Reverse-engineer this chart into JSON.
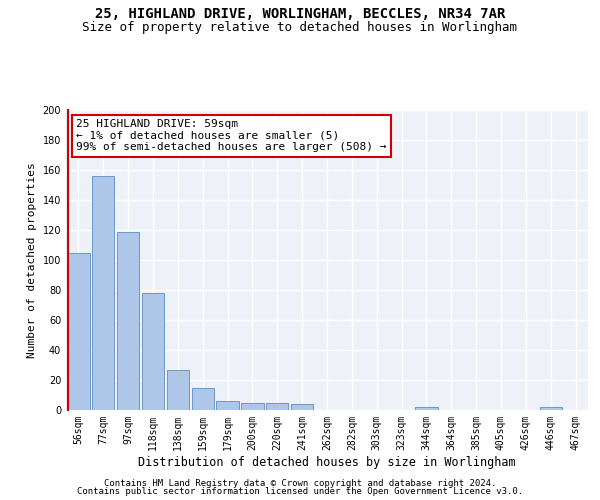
{
  "title1": "25, HIGHLAND DRIVE, WORLINGHAM, BECCLES, NR34 7AR",
  "title2": "Size of property relative to detached houses in Worlingham",
  "xlabel": "Distribution of detached houses by size in Worlingham",
  "ylabel": "Number of detached properties",
  "categories": [
    "56sqm",
    "77sqm",
    "97sqm",
    "118sqm",
    "138sqm",
    "159sqm",
    "179sqm",
    "200sqm",
    "220sqm",
    "241sqm",
    "262sqm",
    "282sqm",
    "303sqm",
    "323sqm",
    "344sqm",
    "364sqm",
    "385sqm",
    "405sqm",
    "426sqm",
    "446sqm",
    "467sqm"
  ],
  "values": [
    105,
    156,
    119,
    78,
    27,
    15,
    6,
    5,
    5,
    4,
    0,
    0,
    0,
    0,
    2,
    0,
    0,
    0,
    0,
    2,
    0
  ],
  "bar_color": "#aec6e8",
  "bar_edge_color": "#5a8fc0",
  "highlight_color": "#cc0000",
  "annotation_line1": "25 HIGHLAND DRIVE: 59sqm",
  "annotation_line2": "← 1% of detached houses are smaller (5)",
  "annotation_line3": "99% of semi-detached houses are larger (508) →",
  "ylim": [
    0,
    200
  ],
  "yticks": [
    0,
    20,
    40,
    60,
    80,
    100,
    120,
    140,
    160,
    180,
    200
  ],
  "background_color": "#eef2f8",
  "grid_color": "#ffffff",
  "footer1": "Contains HM Land Registry data © Crown copyright and database right 2024.",
  "footer2": "Contains public sector information licensed under the Open Government Licence v3.0.",
  "title1_fontsize": 10,
  "title2_fontsize": 9,
  "xlabel_fontsize": 8.5,
  "ylabel_fontsize": 8,
  "tick_fontsize": 7,
  "annotation_fontsize": 8,
  "footer_fontsize": 6.5
}
